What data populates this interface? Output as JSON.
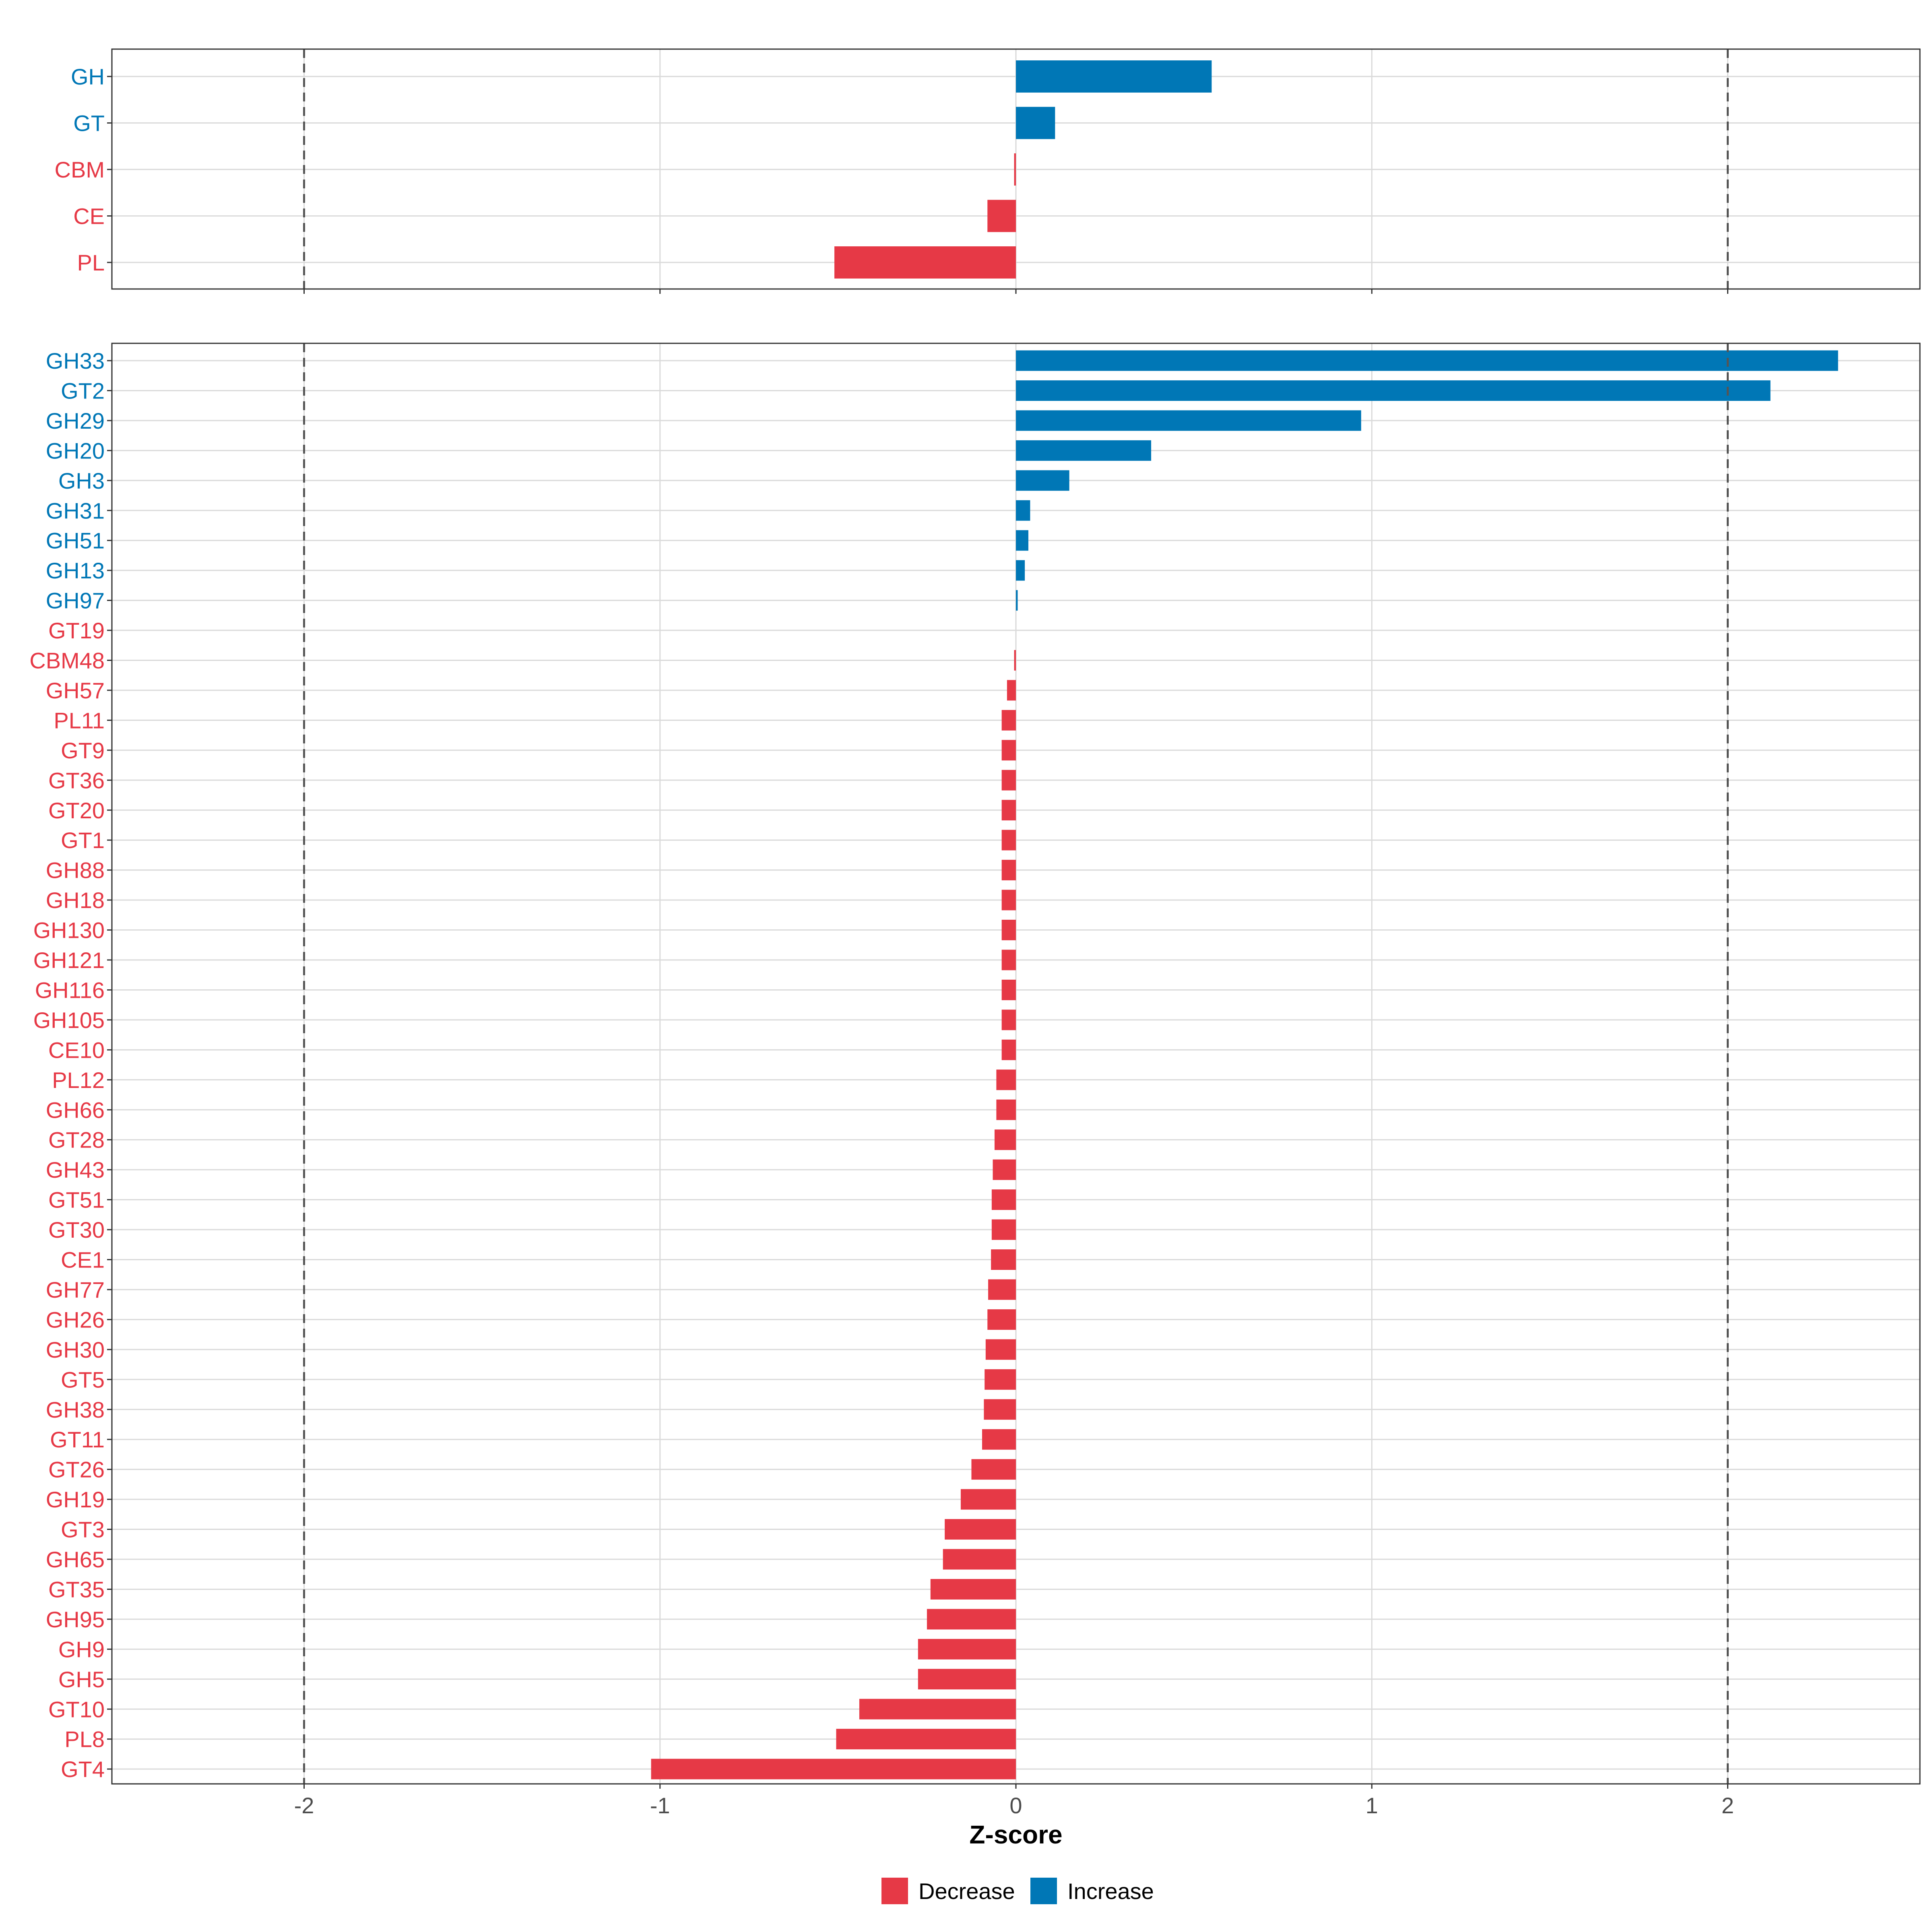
{
  "chart_data": [
    {
      "type": "bar",
      "orientation": "horizontal",
      "panel": "top",
      "categories": [
        "GH",
        "GT",
        "CBM",
        "CE",
        "PL"
      ],
      "values": [
        0.55,
        0.11,
        -0.005,
        -0.08,
        -0.51
      ],
      "xlim": [
        -2.54,
        2.54
      ],
      "x_ticks": [
        -2,
        -1,
        0,
        1,
        2
      ],
      "reference_lines": [
        -2,
        2
      ],
      "grid": true
    },
    {
      "type": "bar",
      "orientation": "horizontal",
      "panel": "bottom",
      "categories": [
        "GH33",
        "GT2",
        "GH29",
        "GH20",
        "GH3",
        "GH31",
        "GH51",
        "GH13",
        "GH97",
        "GT19",
        "CBM48",
        "GH57",
        "PL11",
        "GT9",
        "GT36",
        "GT20",
        "GT1",
        "GH88",
        "GH18",
        "GH130",
        "GH121",
        "GH116",
        "GH105",
        "CE10",
        "PL12",
        "GH66",
        "GT28",
        "GH43",
        "GT51",
        "GT30",
        "CE1",
        "GH77",
        "GH26",
        "GH30",
        "GT5",
        "GH38",
        "GT11",
        "GT26",
        "GH19",
        "GT3",
        "GH65",
        "GT35",
        "GH95",
        "GH9",
        "GH5",
        "GT10",
        "PL8",
        "GT4"
      ],
      "values": [
        2.31,
        2.12,
        0.97,
        0.38,
        0.15,
        0.04,
        0.035,
        0.025,
        0.005,
        0,
        -0.005,
        -0.025,
        -0.04,
        -0.04,
        -0.04,
        -0.04,
        -0.04,
        -0.04,
        -0.04,
        -0.04,
        -0.04,
        -0.04,
        -0.04,
        -0.04,
        -0.055,
        -0.055,
        -0.06,
        -0.065,
        -0.068,
        -0.068,
        -0.07,
        -0.078,
        -0.08,
        -0.085,
        -0.088,
        -0.09,
        -0.095,
        -0.125,
        -0.155,
        -0.2,
        -0.205,
        -0.24,
        -0.25,
        -0.275,
        -0.275,
        -0.44,
        -0.505,
        -1.025
      ],
      "xlim": [
        -2.54,
        2.54
      ],
      "x_ticks": [
        -2,
        -1,
        0,
        1,
        2
      ],
      "reference_lines": [
        -2,
        2
      ],
      "grid": true,
      "xlabel": "Z-score"
    }
  ],
  "legend": {
    "position": "bottom",
    "items": [
      {
        "label": "Decrease",
        "color": "#E63946"
      },
      {
        "label": "Increase",
        "color": "#0077B6"
      }
    ]
  },
  "colors": {
    "increase": "#0077B6",
    "decrease": "#E63946",
    "grid": "#DADADA",
    "frame": "#333333",
    "reference_line": "#555555"
  }
}
